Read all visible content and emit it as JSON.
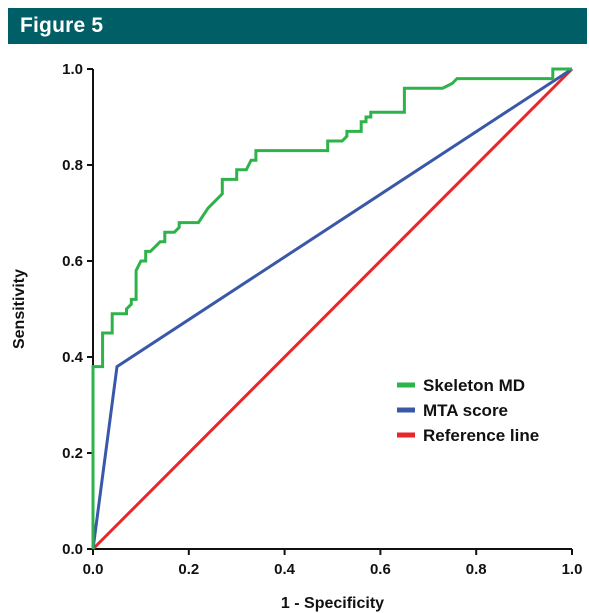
{
  "header": {
    "title": "Figure 5",
    "background": "#005f66"
  },
  "chart_data": {
    "type": "line",
    "xlabel": "1 - Specificity",
    "ylabel": "Sensitivity",
    "xlim": [
      0,
      1
    ],
    "ylim": [
      0,
      1
    ],
    "x_ticks": [
      "0.0",
      "0.2",
      "0.4",
      "0.6",
      "0.8",
      "1.0"
    ],
    "y_ticks": [
      "0.0",
      "0.2",
      "0.4",
      "0.6",
      "0.8",
      "1.0"
    ],
    "grid": false,
    "legend_position": "bottom-right",
    "series": [
      {
        "name": "Skeleton MD",
        "color": "#2db34a",
        "x": [
          0,
          0,
          0.02,
          0.02,
          0.04,
          0.04,
          0.06,
          0.06,
          0.07,
          0.07,
          0.08,
          0.08,
          0.09,
          0.09,
          0.1,
          0.11,
          0.11,
          0.12,
          0.14,
          0.15,
          0.15,
          0.17,
          0.18,
          0.18,
          0.22,
          0.24,
          0.27,
          0.27,
          0.29,
          0.3,
          0.3,
          0.32,
          0.33,
          0.34,
          0.34,
          0.36,
          0.42,
          0.47,
          0.49,
          0.49,
          0.52,
          0.53,
          0.53,
          0.55,
          0.56,
          0.56,
          0.57,
          0.57,
          0.58,
          0.58,
          0.61,
          0.65,
          0.65,
          0.73,
          0.75,
          0.76,
          0.83,
          0.93,
          0.96,
          0.96,
          1.0
        ],
        "y": [
          0,
          0.38,
          0.38,
          0.45,
          0.45,
          0.49,
          0.49,
          0.49,
          0.49,
          0.5,
          0.51,
          0.52,
          0.52,
          0.58,
          0.6,
          0.6,
          0.62,
          0.62,
          0.64,
          0.64,
          0.66,
          0.66,
          0.67,
          0.68,
          0.68,
          0.71,
          0.74,
          0.77,
          0.77,
          0.77,
          0.79,
          0.79,
          0.81,
          0.81,
          0.83,
          0.83,
          0.83,
          0.83,
          0.83,
          0.85,
          0.85,
          0.86,
          0.87,
          0.87,
          0.87,
          0.89,
          0.89,
          0.9,
          0.9,
          0.91,
          0.91,
          0.91,
          0.96,
          0.96,
          0.97,
          0.98,
          0.98,
          0.98,
          0.98,
          1.0,
          1.0
        ]
      },
      {
        "name": "MTA score",
        "color": "#3a58a8",
        "x": [
          0,
          0.05,
          1.0
        ],
        "y": [
          0,
          0.38,
          1.0
        ]
      },
      {
        "name": "Reference line",
        "color": "#e8262b",
        "x": [
          0,
          1.0
        ],
        "y": [
          0,
          1.0
        ]
      }
    ]
  }
}
